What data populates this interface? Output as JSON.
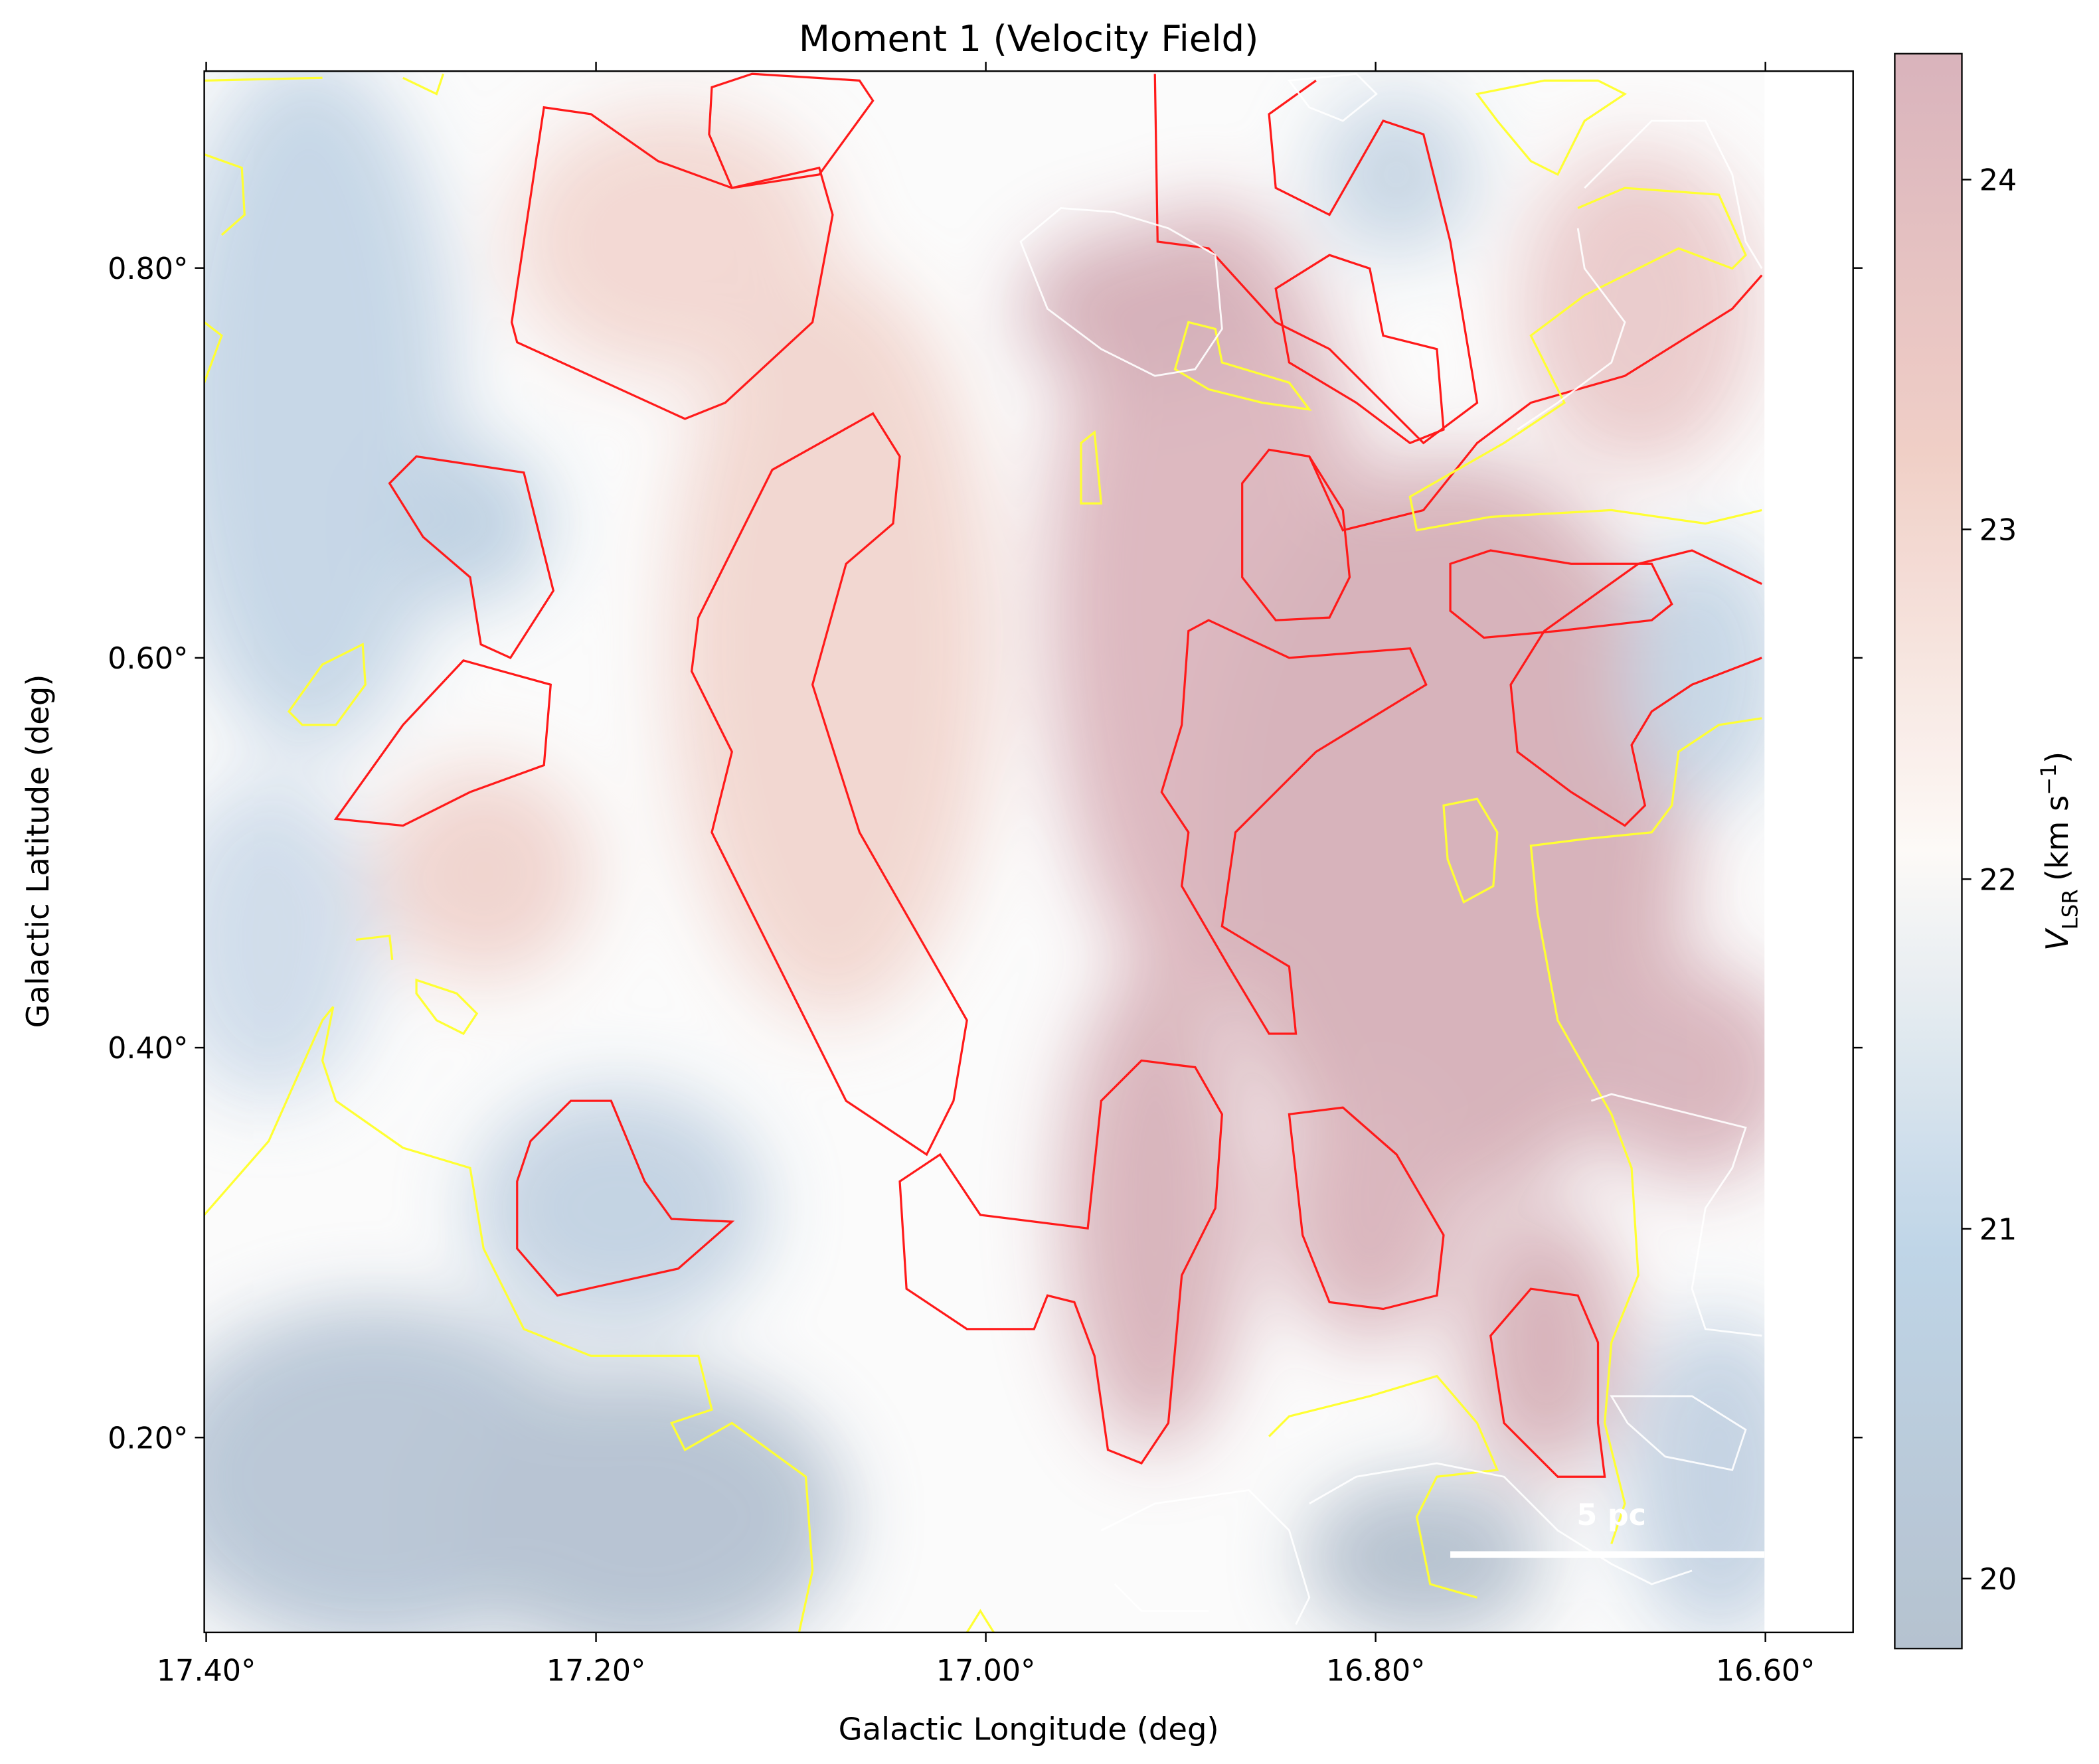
{
  "chart_data": {
    "type": "heatmap",
    "title": "Moment 1 (Velocity Field)",
    "x_label": "Galactic Longitude (deg)",
    "y_label": "Galactic Latitude (deg)",
    "xlim": [
      17.401,
      16.555
    ],
    "ylim": [
      0.1,
      0.901
    ],
    "xticks": [
      {
        "value": 17.4,
        "label": "17.40°"
      },
      {
        "value": 17.2,
        "label": "17.20°"
      },
      {
        "value": 17.0,
        "label": "17.00°"
      },
      {
        "value": 16.8,
        "label": "16.80°"
      },
      {
        "value": 16.6,
        "label": "16.60°"
      }
    ],
    "yticks": [
      {
        "value": 0.2,
        "label": "0.20°"
      },
      {
        "value": 0.4,
        "label": "0.40°"
      },
      {
        "value": 0.6,
        "label": "0.60°"
      },
      {
        "value": 0.8,
        "label": "0.80°"
      }
    ],
    "colorbar": {
      "clim": [
        19.8,
        24.36
      ],
      "ticks": [
        20,
        21,
        22,
        23,
        24
      ],
      "colors": [
        "#b2bfcd",
        "#bcd3e6",
        "#fdfaf7",
        "#f0cdc4",
        "#d8b0b9"
      ],
      "label": {
        "symbol": "V",
        "subscript": "LSR",
        "unit": "(km s",
        "exponent": "−1",
        "close": ")"
      }
    },
    "scale_bar": "5 pc"
  }
}
